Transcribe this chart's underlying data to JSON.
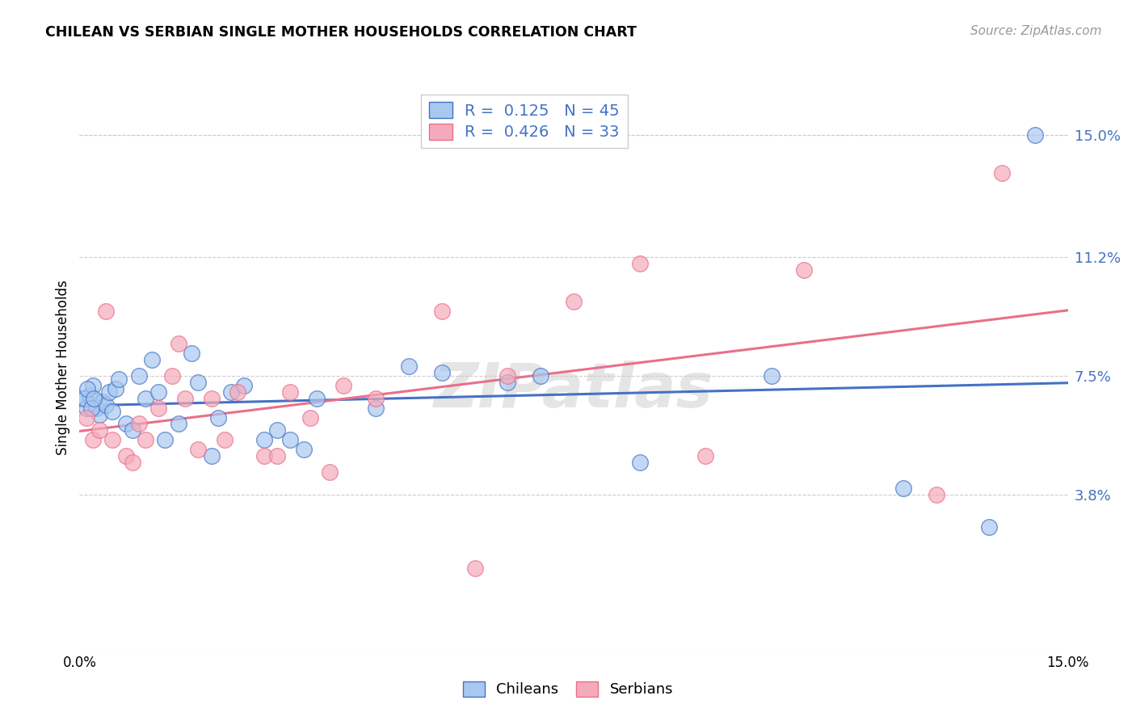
{
  "title": "CHILEAN VS SERBIAN SINGLE MOTHER HOUSEHOLDS CORRELATION CHART",
  "source": "Source: ZipAtlas.com",
  "ylabel": "Single Mother Households",
  "y_tick_values": [
    3.8,
    7.5,
    11.2,
    15.0
  ],
  "xlim": [
    0.0,
    15.0
  ],
  "ylim": [
    -1.0,
    16.5
  ],
  "chilean_color": "#A8C8F0",
  "serbian_color": "#F5AABB",
  "line_chilean_color": "#4472C4",
  "line_serbian_color": "#E8708A",
  "watermark": "ZIPatlas",
  "chileans_x": [
    0.05,
    0.1,
    0.15,
    0.2,
    0.25,
    0.3,
    0.35,
    0.4,
    0.45,
    0.5,
    0.55,
    0.6,
    0.7,
    0.8,
    0.9,
    1.0,
    1.1,
    1.2,
    1.3,
    1.5,
    1.7,
    1.8,
    2.0,
    2.1,
    2.3,
    2.5,
    2.8,
    3.0,
    3.2,
    3.4,
    3.6,
    4.5,
    5.0,
    5.5,
    6.5,
    7.0,
    8.5,
    10.5,
    12.5,
    13.8,
    14.5,
    0.08,
    0.12,
    0.18,
    0.22
  ],
  "chileans_y": [
    6.8,
    6.5,
    6.9,
    7.2,
    6.5,
    6.3,
    6.7,
    6.6,
    7.0,
    6.4,
    7.1,
    7.4,
    6.0,
    5.8,
    7.5,
    6.8,
    8.0,
    7.0,
    5.5,
    6.0,
    8.2,
    7.3,
    5.0,
    6.2,
    7.0,
    7.2,
    5.5,
    5.8,
    5.5,
    5.2,
    6.8,
    6.5,
    7.8,
    7.6,
    7.3,
    7.5,
    4.8,
    7.5,
    4.0,
    2.8,
    15.0,
    6.8,
    7.1,
    6.5,
    6.8
  ],
  "serbians_x": [
    0.1,
    0.2,
    0.3,
    0.5,
    0.7,
    0.9,
    1.0,
    1.2,
    1.4,
    1.6,
    1.8,
    2.0,
    2.2,
    2.4,
    2.8,
    3.0,
    3.2,
    3.5,
    4.0,
    4.5,
    5.5,
    6.5,
    7.5,
    8.5,
    9.5,
    11.0,
    13.0,
    14.0,
    0.4,
    0.8,
    1.5,
    3.8,
    6.0
  ],
  "serbians_y": [
    6.2,
    5.5,
    5.8,
    5.5,
    5.0,
    6.0,
    5.5,
    6.5,
    7.5,
    6.8,
    5.2,
    6.8,
    5.5,
    7.0,
    5.0,
    5.0,
    7.0,
    6.2,
    7.2,
    6.8,
    9.5,
    7.5,
    9.8,
    11.0,
    5.0,
    10.8,
    3.8,
    13.8,
    9.5,
    4.8,
    8.5,
    4.5,
    1.5
  ],
  "legend_r1": "R = ",
  "legend_v1": "0.125",
  "legend_n1": "N = ",
  "legend_nv1": "45",
  "legend_r2": "R = ",
  "legend_v2": "0.426",
  "legend_n2": "N = ",
  "legend_nv2": "33"
}
